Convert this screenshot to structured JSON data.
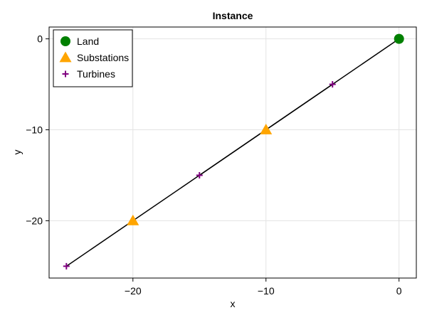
{
  "chart_data": {
    "type": "scatter",
    "title": "Instance",
    "xlabel": "x",
    "ylabel": "y",
    "xlim": [
      -26.3,
      1.3
    ],
    "ylim": [
      -26.3,
      1.3
    ],
    "xticks": [
      -20,
      -10,
      0
    ],
    "yticks": [
      0,
      -10,
      -20
    ],
    "xtick_labels": [
      "−20",
      "−10",
      "0"
    ],
    "ytick_labels": [
      "0",
      "−10",
      "−20"
    ],
    "grid": true,
    "legend_position": "top-left",
    "series": [
      {
        "name": "Land",
        "marker": "circle",
        "color": "#008000",
        "points": [
          [
            0,
            0
          ]
        ]
      },
      {
        "name": "Substations",
        "marker": "triangle",
        "color": "#FFA500",
        "points": [
          [
            -10,
            -10
          ],
          [
            -20,
            -20
          ]
        ]
      },
      {
        "name": "Turbines",
        "marker": "plus",
        "color": "#800080",
        "points": [
          [
            -5,
            -5
          ],
          [
            -15,
            -15
          ],
          [
            -25,
            -25
          ]
        ]
      }
    ],
    "edges": [
      [
        [
          0,
          0
        ],
        [
          -10,
          -10
        ]
      ],
      [
        [
          -10,
          -10
        ],
        [
          -5,
          -5
        ]
      ],
      [
        [
          -10,
          -10
        ],
        [
          -15,
          -15
        ]
      ],
      [
        [
          -10,
          -10
        ],
        [
          -20,
          -20
        ]
      ],
      [
        [
          -20,
          -20
        ],
        [
          -25,
          -25
        ]
      ]
    ],
    "edge_color": "#000000"
  }
}
